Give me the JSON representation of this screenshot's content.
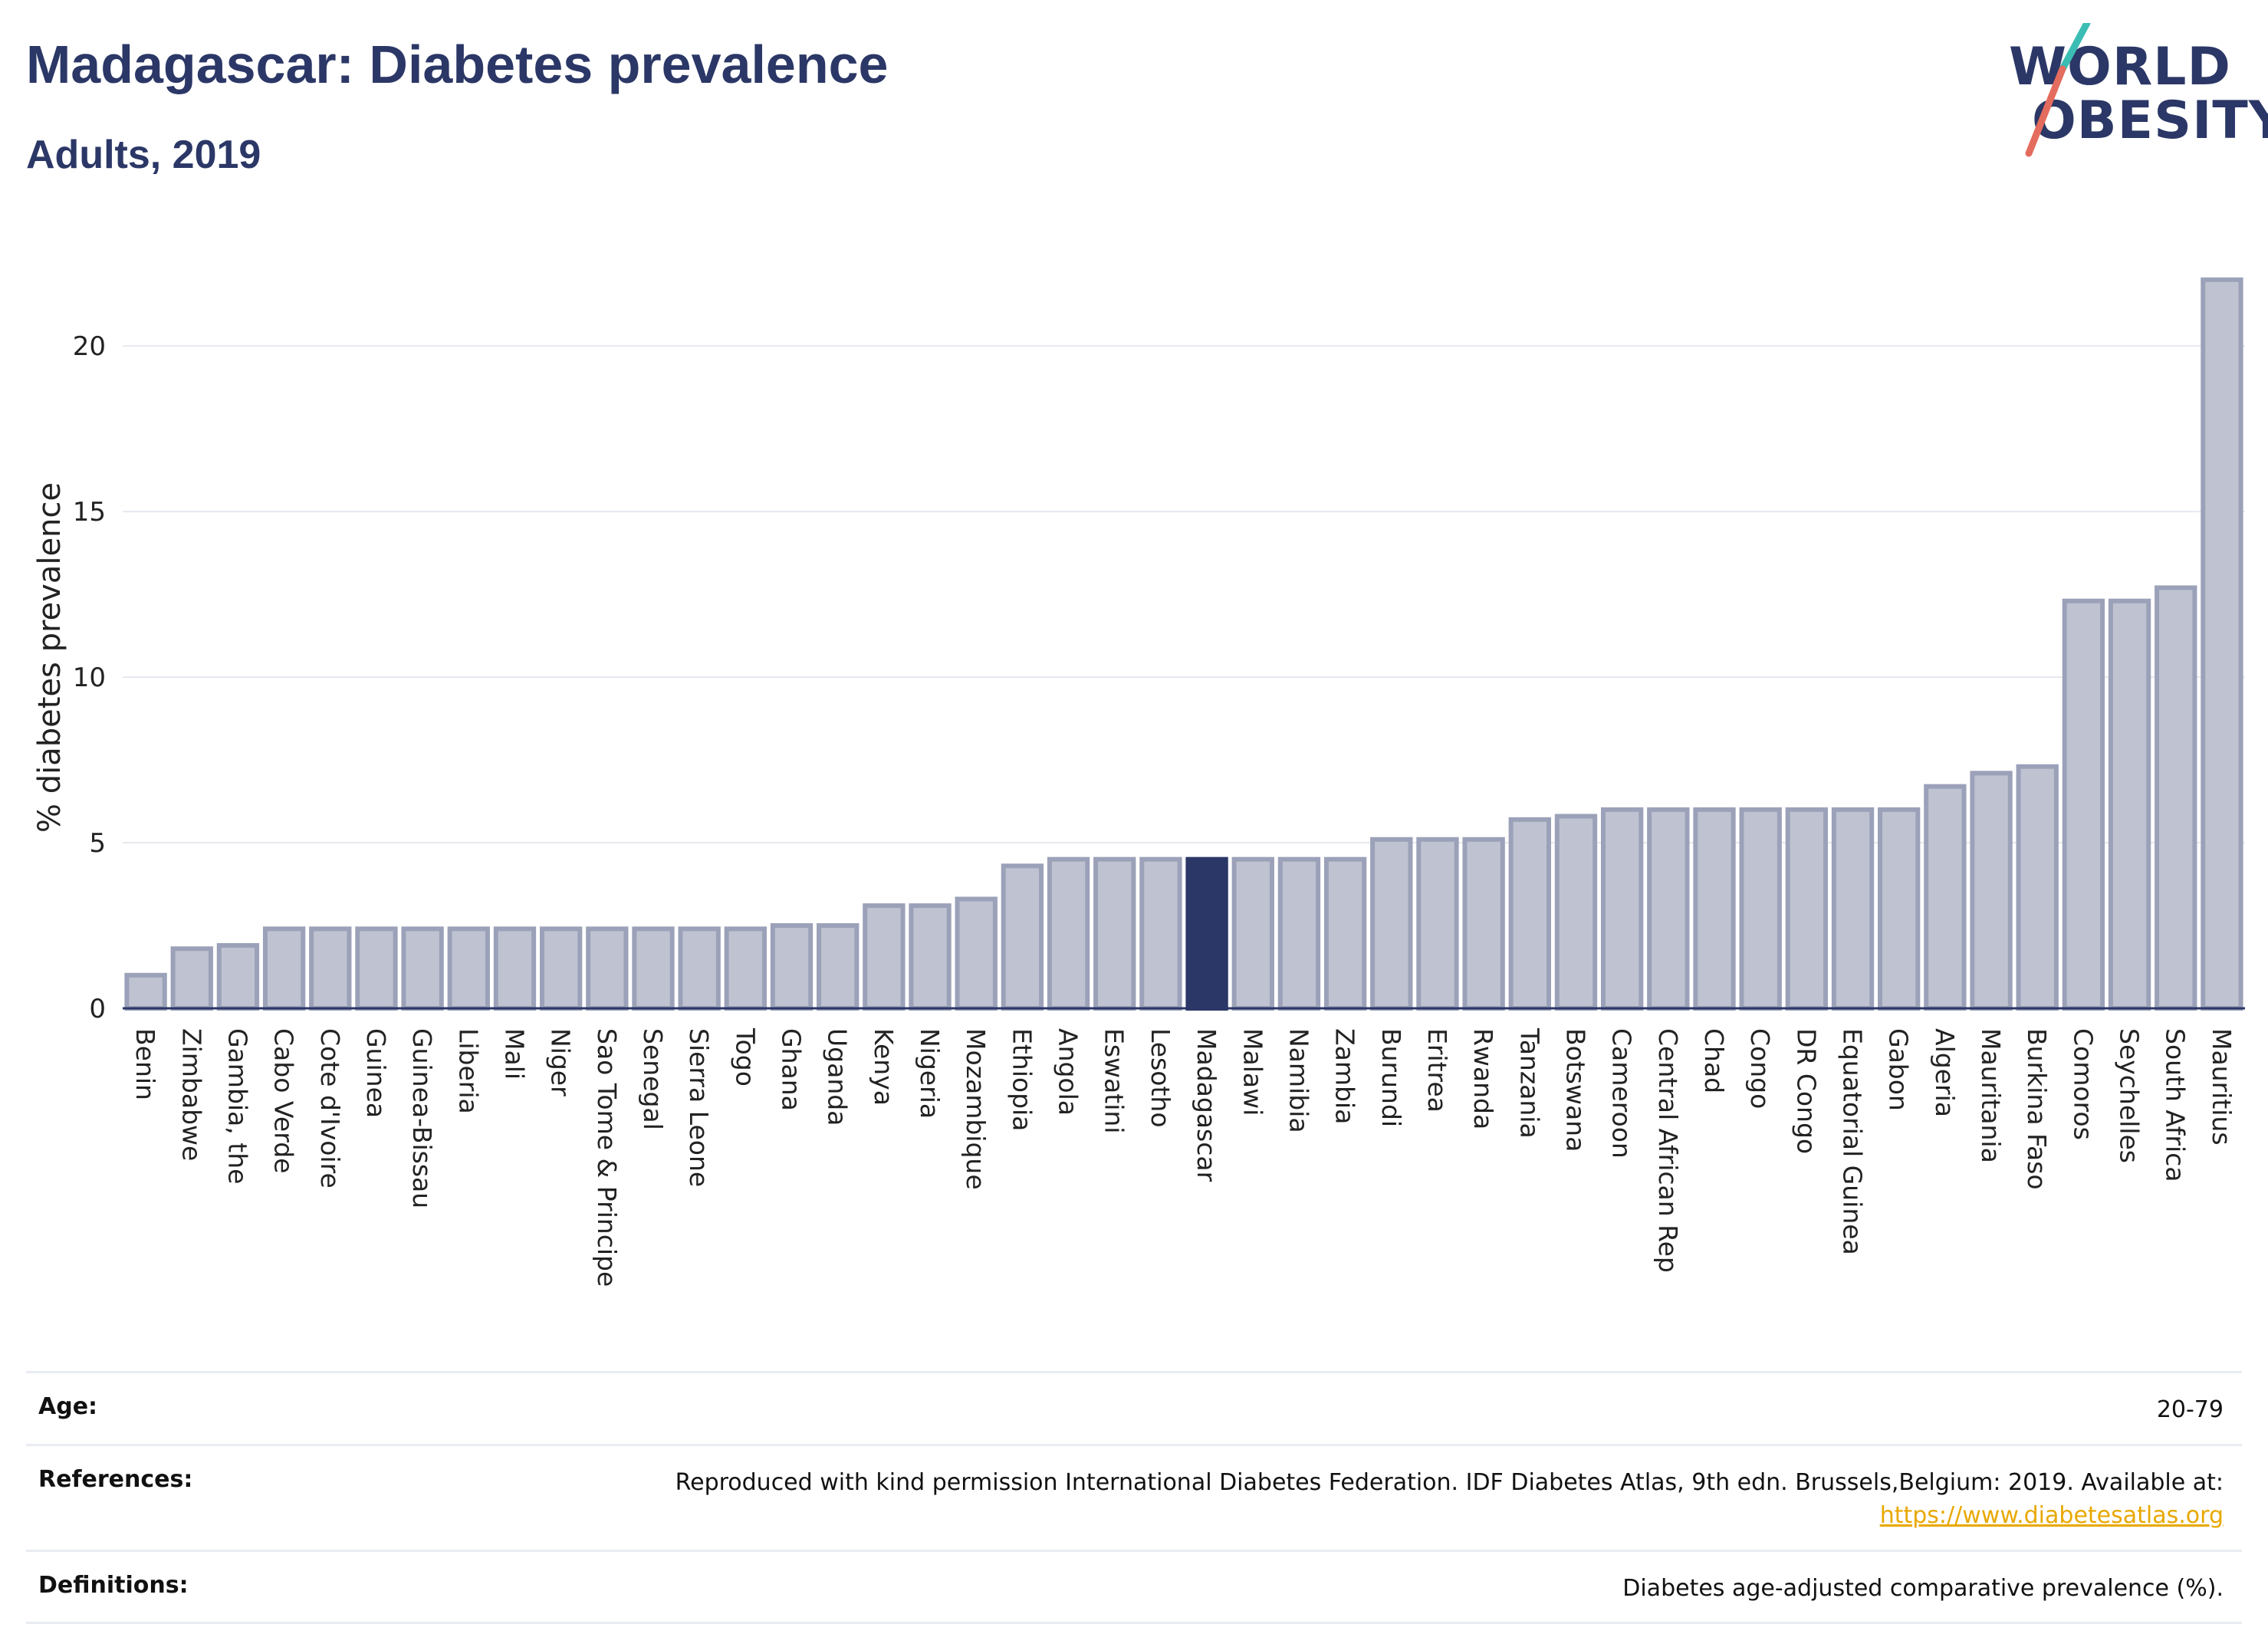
{
  "header": {
    "title": "Madagascar: Diabetes prevalence",
    "subtitle": "Adults, 2019"
  },
  "logo": {
    "line1": "WORLD",
    "line2": "OBESITY"
  },
  "chart_data": {
    "type": "bar",
    "ylabel": "% diabetes prevalence",
    "xlabel": "",
    "ylim": [
      0,
      23.5
    ],
    "yticks": [
      0,
      5,
      10,
      15,
      20
    ],
    "grid": true,
    "highlight": "Madagascar",
    "colors": {
      "bar": "#bfc3d1",
      "bar_border": "#9ba1b8",
      "highlight": "#2b3766"
    },
    "categories": [
      "Benin",
      "Zimbabwe",
      "Gambia, the",
      "Cabo Verde",
      "Cote d'Ivoire",
      "Guinea",
      "Guinea-Bissau",
      "Liberia",
      "Mali",
      "Niger",
      "Sao Tome & Principe",
      "Senegal",
      "Sierra Leone",
      "Togo",
      "Ghana",
      "Uganda",
      "Kenya",
      "Nigeria",
      "Mozambique",
      "Ethiopia",
      "Angola",
      "Eswatini",
      "Lesotho",
      "Madagascar",
      "Malawi",
      "Namibia",
      "Zambia",
      "Burundi",
      "Eritrea",
      "Rwanda",
      "Tanzania",
      "Botswana",
      "Cameroon",
      "Central African Rep",
      "Chad",
      "Congo",
      "DR Congo",
      "Equatorial Guinea",
      "Gabon",
      "Algeria",
      "Mauritania",
      "Burkina Faso",
      "Comoros",
      "Seychelles",
      "South Africa",
      "Mauritius"
    ],
    "values": [
      1.0,
      1.8,
      1.9,
      2.4,
      2.4,
      2.4,
      2.4,
      2.4,
      2.4,
      2.4,
      2.4,
      2.4,
      2.4,
      2.4,
      2.5,
      2.5,
      3.1,
      3.1,
      3.3,
      4.3,
      4.5,
      4.5,
      4.5,
      4.5,
      4.5,
      4.5,
      4.5,
      5.1,
      5.1,
      5.1,
      5.7,
      5.8,
      6.0,
      6.0,
      6.0,
      6.0,
      6.0,
      6.0,
      6.0,
      6.7,
      7.1,
      7.3,
      12.3,
      12.3,
      12.7,
      22.0
    ]
  },
  "info": {
    "age_label": "Age:",
    "age_value": "20-79",
    "references_label": "References:",
    "references_text": "Reproduced with kind permission International Diabetes Federation. IDF Diabetes Atlas, 9th edn. Brussels,Belgium: 2019. Available at:",
    "references_link": "https://www.diabetesatlas.org",
    "definitions_label": "Definitions:",
    "definitions_value": "Diabetes age-adjusted comparative prevalence (%)."
  }
}
